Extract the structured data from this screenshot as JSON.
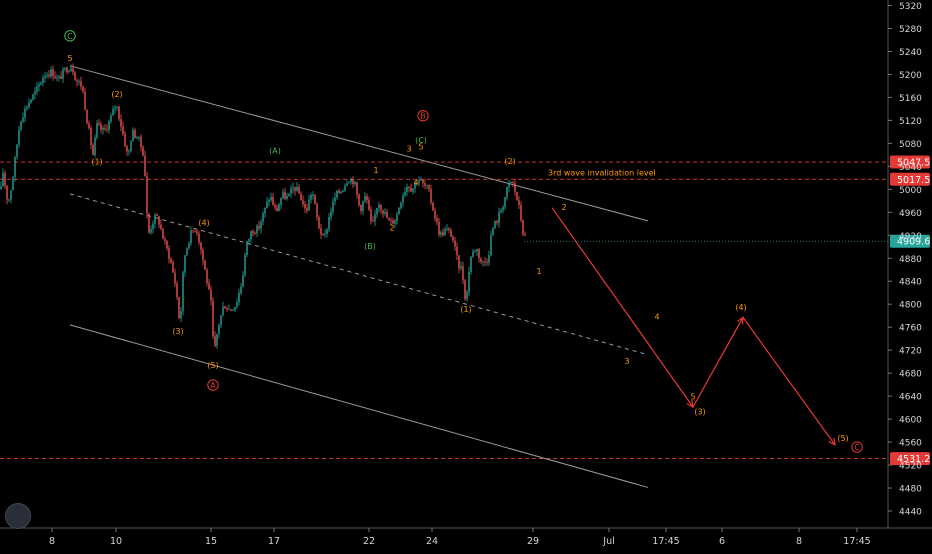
{
  "chart_data": {
    "type": "candlestick",
    "title": "",
    "xlabel": "",
    "ylabel": "",
    "ylim": [
      4400,
      5340
    ],
    "y_ticks": [
      4440,
      4480,
      4520,
      4560,
      4600,
      4640,
      4680,
      4720,
      4760,
      4800,
      4840,
      4880,
      4920,
      4960,
      5000,
      5040,
      5080,
      5120,
      5160,
      5200,
      5240,
      5280,
      5320
    ],
    "x_ticks": [
      "8",
      "10",
      "15",
      "17",
      "22",
      "24",
      "29",
      "Jul",
      "17:45",
      "6",
      "8",
      "17:45"
    ],
    "price_tags": [
      {
        "value": "5047.5",
        "color": "#e53935",
        "style": "dashed"
      },
      {
        "value": "5017.5",
        "color": "#e53935",
        "style": "dashed"
      },
      {
        "value": "4909.6",
        "color": "#26a69a",
        "style": "last-price"
      },
      {
        "value": "4531.2",
        "color": "#e53935",
        "style": "dashed"
      }
    ],
    "invalidation_label": "3rd wave invalidation level",
    "series": [
      {
        "kind": "candles",
        "up_color": "#26a69a",
        "down_color": "#ef5350",
        "path": [
          [
            0,
            4985
          ],
          [
            3,
            5030
          ],
          [
            8,
            4975
          ],
          [
            12,
            5010
          ],
          [
            20,
            5120
          ],
          [
            28,
            5150
          ],
          [
            36,
            5170
          ],
          [
            44,
            5200
          ],
          [
            52,
            5205
          ],
          [
            58,
            5190
          ],
          [
            66,
            5210
          ],
          [
            72,
            5215
          ],
          [
            76,
            5190
          ],
          [
            82,
            5180
          ],
          [
            88,
            5110
          ],
          [
            93,
            5060
          ],
          [
            97,
            5110
          ],
          [
            104,
            5100
          ],
          [
            110,
            5120
          ],
          [
            116,
            5150
          ],
          [
            122,
            5105
          ],
          [
            128,
            5055
          ],
          [
            132,
            5100
          ],
          [
            138,
            5090
          ],
          [
            144,
            5060
          ],
          [
            148,
            4920
          ],
          [
            154,
            4950
          ],
          [
            158,
            4950
          ],
          [
            164,
            4910
          ],
          [
            170,
            4880
          ],
          [
            176,
            4830
          ],
          [
            180,
            4760
          ],
          [
            184,
            4880
          ],
          [
            190,
            4920
          ],
          [
            196,
            4935
          ],
          [
            200,
            4905
          ],
          [
            206,
            4850
          ],
          [
            211,
            4800
          ],
          [
            214,
            4710
          ],
          [
            218,
            4760
          ],
          [
            224,
            4800
          ],
          [
            230,
            4790
          ],
          [
            236,
            4800
          ],
          [
            242,
            4840
          ],
          [
            246,
            4900
          ],
          [
            252,
            4930
          ],
          [
            258,
            4930
          ],
          [
            264,
            4960
          ],
          [
            270,
            4990
          ],
          [
            276,
            4960
          ],
          [
            282,
            4990
          ],
          [
            288,
            4985
          ],
          [
            294,
            5005
          ],
          [
            300,
            4990
          ],
          [
            306,
            4960
          ],
          [
            312,
            5000
          ],
          [
            318,
            4940
          ],
          [
            324,
            4910
          ],
          [
            330,
            4960
          ],
          [
            336,
            4990
          ],
          [
            342,
            5000
          ],
          [
            348,
            5020
          ],
          [
            354,
            5015
          ],
          [
            360,
            4965
          ],
          [
            366,
            4990
          ],
          [
            372,
            4930
          ],
          [
            378,
            4980
          ],
          [
            384,
            4960
          ],
          [
            390,
            4940
          ],
          [
            396,
            4950
          ],
          [
            402,
            4990
          ],
          [
            408,
            5010
          ],
          [
            412,
            5000
          ],
          [
            418,
            5020
          ],
          [
            422,
            5010
          ],
          [
            428,
            5000
          ],
          [
            434,
            4960
          ],
          [
            440,
            4920
          ],
          [
            446,
            4930
          ],
          [
            452,
            4920
          ],
          [
            458,
            4870
          ],
          [
            462,
            4860
          ],
          [
            466,
            4800
          ],
          [
            470,
            4880
          ],
          [
            476,
            4900
          ],
          [
            482,
            4870
          ],
          [
            488,
            4880
          ],
          [
            492,
            4930
          ],
          [
            498,
            4950
          ],
          [
            504,
            4980
          ],
          [
            508,
            5005
          ],
          [
            512,
            5015
          ],
          [
            516,
            4990
          ],
          [
            520,
            4960
          ],
          [
            524,
            4915
          ]
        ]
      }
    ],
    "channel_lines": [
      {
        "from": [
          70,
          5215
        ],
        "to": [
          648,
          4945
        ],
        "style": "solid"
      },
      {
        "from": [
          70,
          4992
        ],
        "to": [
          648,
          4712
        ],
        "style": "dashed"
      },
      {
        "from": [
          70,
          4764
        ],
        "to": [
          648,
          4481
        ],
        "style": "solid"
      }
    ],
    "projection": [
      [
        552,
        4968
      ],
      [
        693,
        4621
      ],
      [
        743,
        4777
      ],
      [
        835,
        4555
      ]
    ],
    "annotations": [
      {
        "text": "C",
        "circled": true,
        "color": "#4caf50",
        "at": [
          70,
          5262
        ]
      },
      {
        "text": "5",
        "color": "#ff9800",
        "at": [
          70,
          5223
        ]
      },
      {
        "text": "(2)",
        "color": "#ff9800",
        "at": [
          117,
          5161
        ]
      },
      {
        "text": "(1)",
        "color": "#ff9800",
        "at": [
          97,
          5043
        ]
      },
      {
        "text": "(A)",
        "color": "#4caf50",
        "at": [
          275,
          5062
        ]
      },
      {
        "text": "1",
        "color": "#ff9800",
        "at": [
          376,
          5028
        ]
      },
      {
        "text": "B",
        "circled": true,
        "color": "#e53935",
        "at": [
          423,
          5123
        ]
      },
      {
        "text": "(C)",
        "color": "#4caf50",
        "at": [
          421,
          5081
        ]
      },
      {
        "text": "5",
        "color": "#ff9800",
        "at": [
          421,
          5069
        ]
      },
      {
        "text": "3",
        "color": "#ff9800",
        "at": [
          409,
          5066
        ]
      },
      {
        "text": "4",
        "color": "#ff9800",
        "at": [
          416,
          5007
        ]
      },
      {
        "text": "(2)",
        "color": "#ff9800",
        "at": [
          510,
          5044
        ]
      },
      {
        "text": "(4)",
        "color": "#ff9800",
        "at": [
          204,
          4937
        ]
      },
      {
        "text": "2",
        "color": "#ff9800",
        "at": [
          392,
          4928
        ]
      },
      {
        "text": "(B)",
        "color": "#4caf50",
        "at": [
          370,
          4896
        ]
      },
      {
        "text": "2",
        "color": "#ff9800",
        "at": [
          564,
          4964
        ]
      },
      {
        "text": "1",
        "color": "#ff9800",
        "at": [
          539,
          4853
        ]
      },
      {
        "text": "(1)",
        "color": "#ff9800",
        "at": [
          466,
          4786
        ]
      },
      {
        "text": "4",
        "color": "#ff9800",
        "at": [
          657,
          4773
        ]
      },
      {
        "text": "(3)",
        "color": "#ff9800",
        "at": [
          178,
          4748
        ]
      },
      {
        "text": "(4)",
        "color": "#ff9800",
        "at": [
          741,
          4790
        ]
      },
      {
        "text": "(5)",
        "color": "#ff9800",
        "at": [
          213,
          4689
        ]
      },
      {
        "text": "3",
        "color": "#ff9800",
        "at": [
          627,
          4696
        ]
      },
      {
        "text": "A",
        "circled": true,
        "color": "#e53935",
        "at": [
          213,
          4654
        ]
      },
      {
        "text": "5",
        "color": "#ff9800",
        "at": [
          693,
          4634
        ]
      },
      {
        "text": "(3)",
        "color": "#ff9800",
        "at": [
          700,
          4608
        ]
      },
      {
        "text": "(5)",
        "color": "#ff9800",
        "at": [
          843,
          4562
        ]
      },
      {
        "text": "C",
        "circled": true,
        "color": "#e53935",
        "at": [
          857,
          4546
        ]
      }
    ]
  }
}
